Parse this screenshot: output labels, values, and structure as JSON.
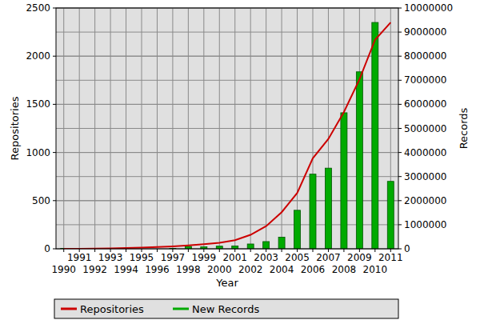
{
  "chart_data": {
    "type": "bar",
    "xlabel": "Year",
    "ylabel": "Repositories",
    "y2label": "Records",
    "categories": [
      "1990",
      "1991",
      "1992",
      "1993",
      "1994",
      "1995",
      "1996",
      "1997",
      "1998",
      "1999",
      "2000",
      "2001",
      "2002",
      "2003",
      "2004",
      "2005",
      "2006",
      "2007",
      "2008",
      "2009",
      "2010",
      "2011"
    ],
    "series": [
      {
        "name": "Repositories",
        "type": "line",
        "color": "#cc0000",
        "values": [
          0,
          1,
          2,
          5,
          8,
          12,
          18,
          25,
          35,
          48,
          62,
          90,
          145,
          235,
          380,
          580,
          940,
          1140,
          1420,
          1760,
          2170,
          2350
        ]
      },
      {
        "name": "New Records",
        "type": "bar",
        "color": "#00aa00",
        "axis": "y2",
        "values": [
          20000,
          0,
          0,
          0,
          0,
          0,
          0,
          20000,
          100000,
          80000,
          110000,
          120000,
          200000,
          300000,
          480000,
          1600000,
          3100000,
          3350000,
          5650000,
          7350000,
          9400000,
          2800000
        ]
      }
    ],
    "ylim": [
      0,
      2500
    ],
    "yticks": [
      0,
      500,
      1000,
      1500,
      2000,
      2500
    ],
    "y2lim": [
      0,
      10000000
    ],
    "y2ticks": [
      0,
      1000000,
      2000000,
      3000000,
      4000000,
      5000000,
      6000000,
      7000000,
      8000000,
      9000000,
      10000000
    ],
    "grid": true,
    "legend": "bottom"
  }
}
